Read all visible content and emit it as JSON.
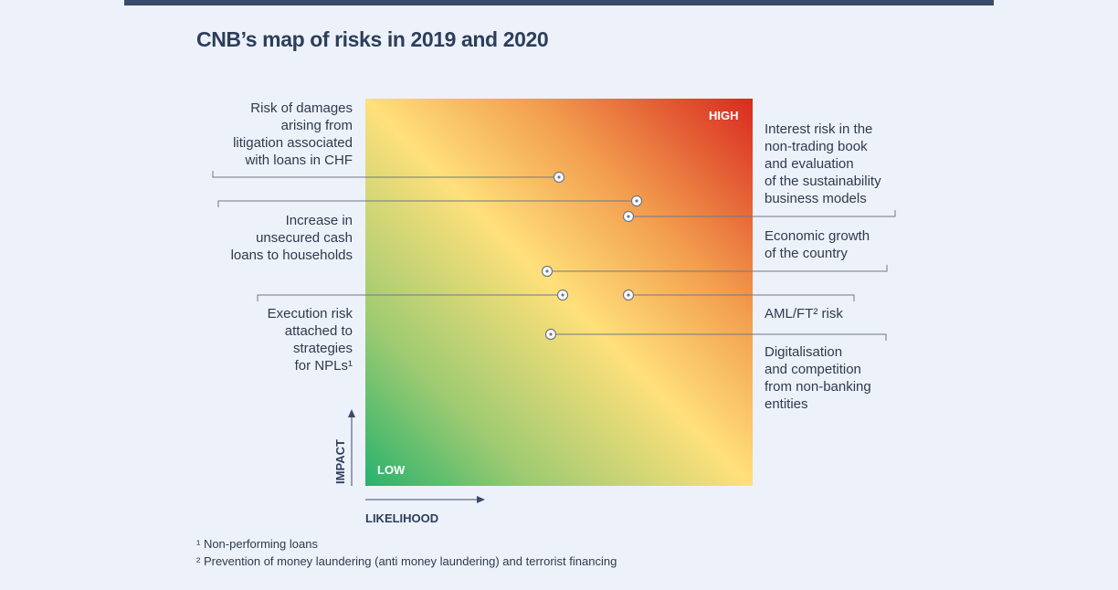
{
  "title": "CNB’s map of risks in 2019 and 2020",
  "corners": {
    "high": "HIGH",
    "low": "LOW"
  },
  "axes": {
    "y": "IMPACT",
    "x": "LIKELIHOOD"
  },
  "risks_left": [
    {
      "lines": [
        "Risk of damages",
        "arising from",
        "litigation associated",
        "with loans in CHF"
      ]
    },
    {
      "lines": [
        "Increase in",
        "unsecured cash",
        "loans to households"
      ]
    },
    {
      "lines": [
        "Execution risk",
        "attached to",
        "strategies",
        "for NPLs¹"
      ]
    }
  ],
  "risks_right": [
    {
      "lines": [
        "Interest risk in the",
        "non-trading book",
        "and evaluation",
        "of the sustainability",
        "business models"
      ]
    },
    {
      "lines": [
        "Economic growth",
        "of the country"
      ]
    },
    {
      "lines": [
        "AML/FT² risk"
      ]
    },
    {
      "lines": [
        "Digitalisation",
        "and competition",
        "from non-banking",
        "entities"
      ]
    }
  ],
  "footnotes": [
    "¹ Non-performing loans",
    "² Prevention of money laundering (anti money laundering) and terrorist financing"
  ],
  "colors": {
    "low": "#27b26d",
    "mid": "#ffe07a",
    "high": "#d82a20",
    "text": "#2f3a4d",
    "accent": "#3a4a6b"
  }
}
